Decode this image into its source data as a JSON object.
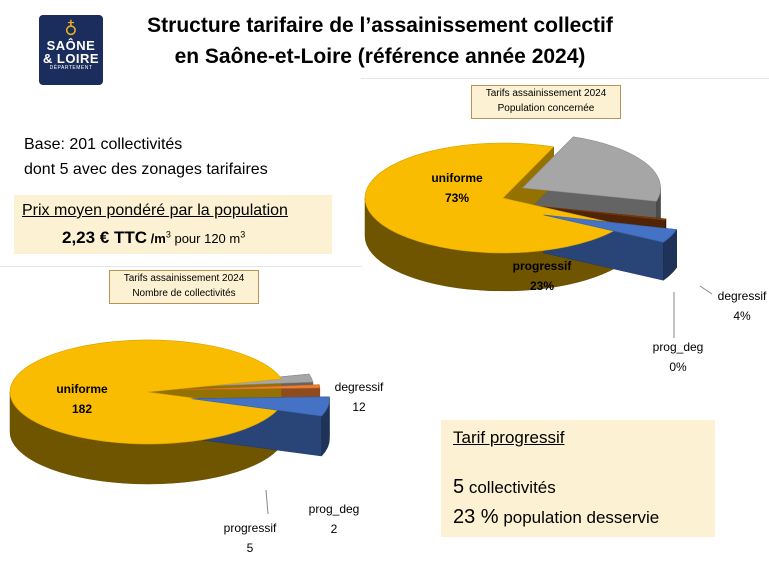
{
  "logo": {
    "line1": "SAÔNE",
    "line2": "& LOIRE",
    "line3": "DÉPARTEMENT"
  },
  "title": {
    "line1": "Structure tarifaire de l’assainissement collectif",
    "line2": "en Saône-et-Loire (référence année 2024)"
  },
  "base": {
    "line1": "Base: 201 collectivités",
    "line2": "dont 5 avec des zonages tarifaires"
  },
  "price": {
    "label": "Prix moyen pondéré par la population",
    "value": "2,23 € TTC",
    "unit_a": "/m",
    "unit_b": " pour 120 m",
    "sup": "3"
  },
  "progressif_box": {
    "heading": "Tarif progressif",
    "count_num": "5",
    "count_text": " collectivités",
    "pop_num": "23 %",
    "pop_text": " population desservie"
  },
  "chart_data": [
    {
      "type": "pie",
      "title": "Tarifs assainissement 2024",
      "subtitle": "Population concernée",
      "labels": [
        "uniforme",
        "progressif",
        "prog_deg",
        "degressif"
      ],
      "values": [
        73,
        23,
        0,
        4
      ],
      "display_values": [
        "73%",
        "23%",
        "0%",
        "4%"
      ],
      "colors": [
        "#f9bc00",
        "#a6a6a6",
        "#843c0c",
        "#4472c4"
      ]
    },
    {
      "type": "pie",
      "title": "Tarifs assainissement 2024",
      "subtitle": "Nombre de collectivités",
      "labels": [
        "uniforme",
        "progressif",
        "prog_deg",
        "degressif"
      ],
      "values": [
        182,
        5,
        2,
        12
      ],
      "display_values": [
        "182",
        "5",
        "2",
        "12"
      ],
      "colors": [
        "#f9bc00",
        "#a6a6a6",
        "#ed7d31",
        "#4472c4"
      ]
    }
  ]
}
